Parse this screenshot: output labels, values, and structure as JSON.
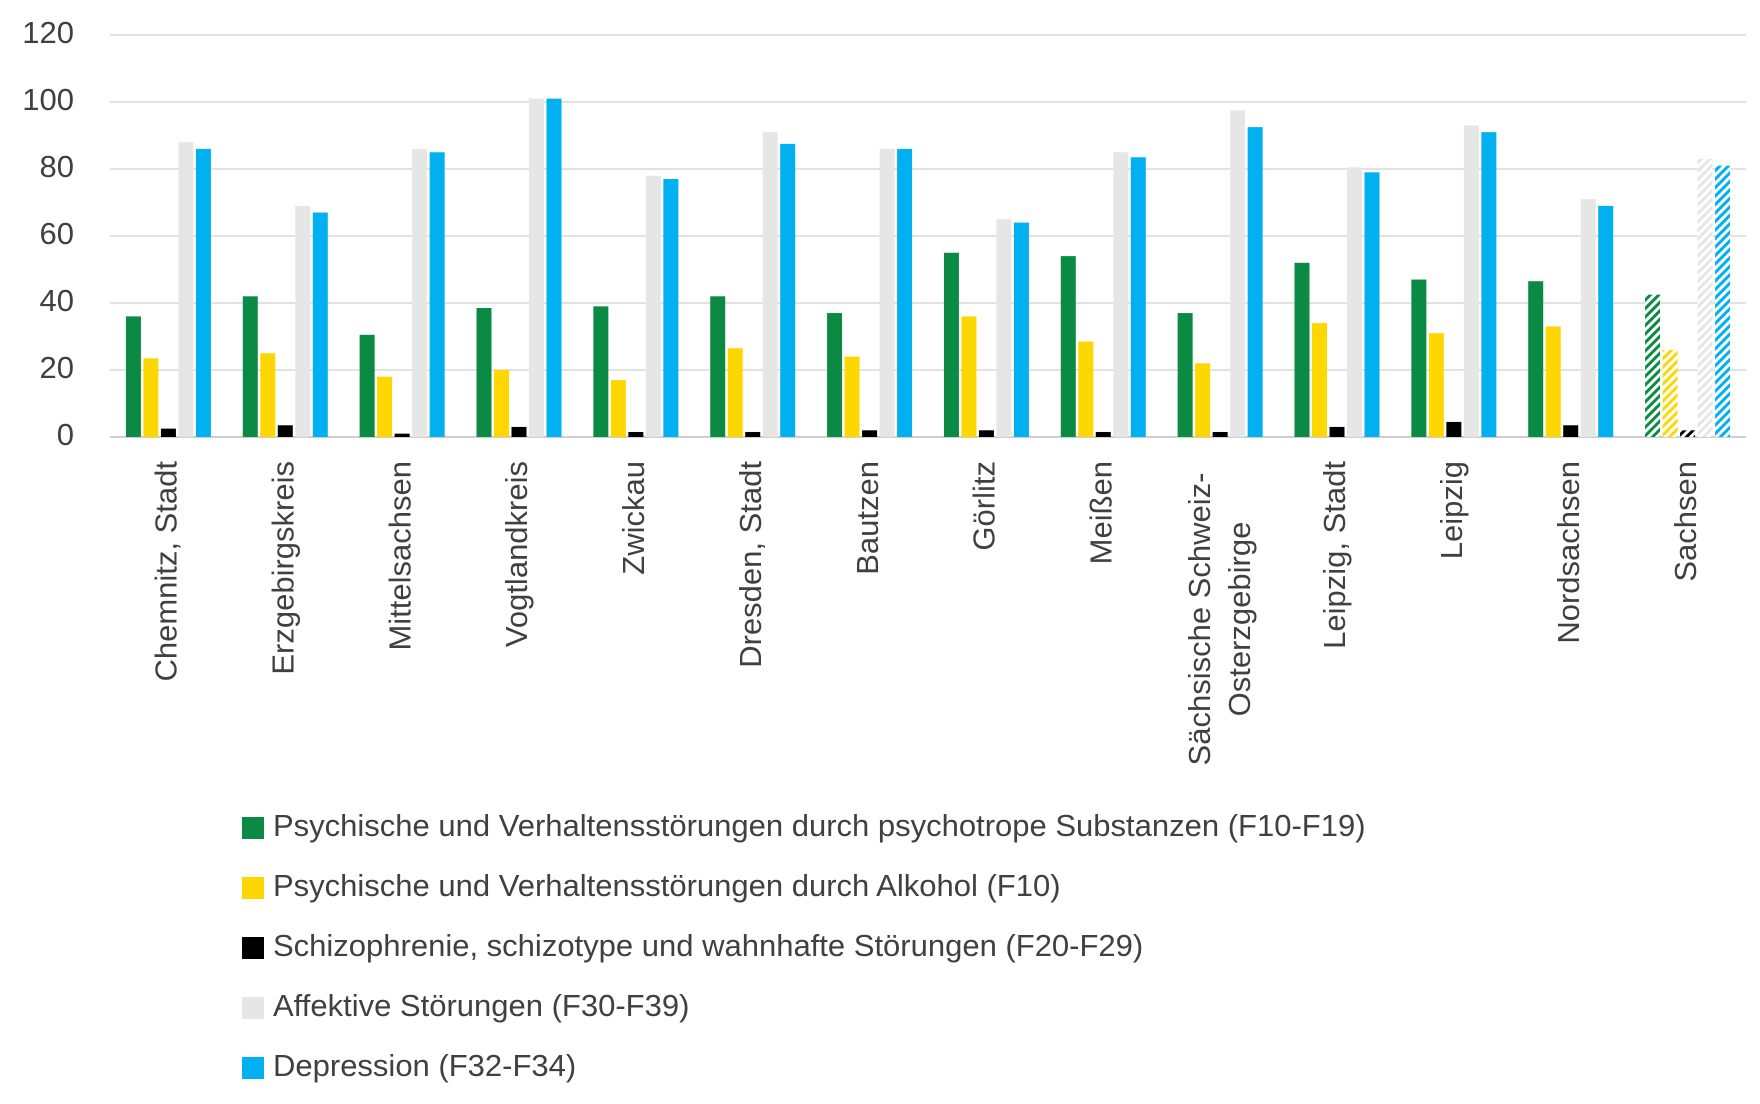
{
  "chart_data": {
    "type": "bar",
    "categories": [
      "Chemnitz, Stadt",
      "Erzgebirgskreis",
      "Mittelsachsen",
      "Vogtlandkreis",
      "Zwickau",
      "Dresden, Stadt",
      "Bautzen",
      "Görlitz",
      "Meißen",
      "Sächsische Schweiz-Osterzgebirge",
      "Leipzig, Stadt",
      "Leipzig",
      "Nordsachsen",
      "Sachsen"
    ],
    "series": [
      {
        "name": "Psychische und Verhaltensstörungen durch psychotrope Substanzen (F10-F19)",
        "color": "#0b8a44",
        "values": [
          36,
          42,
          30.5,
          38.5,
          39,
          42,
          37,
          55,
          54,
          37,
          52,
          47,
          46.5,
          42.5
        ]
      },
      {
        "name": "Psychische und Verhaltensstörungen durch Alkohol (F10)",
        "color": "#ffd700",
        "values": [
          23.5,
          25,
          18,
          20,
          17,
          26.5,
          24,
          36,
          28.5,
          22,
          34,
          31,
          33,
          26
        ]
      },
      {
        "name": "Schizophrenie, schizotype und wahnhafte Störungen (F20-F29)",
        "color": "#000000",
        "values": [
          2.5,
          3.5,
          1,
          3,
          1.5,
          1.5,
          2,
          2,
          1.5,
          1.5,
          3,
          4.5,
          3.5,
          2
        ]
      },
      {
        "name": "Affektive Störungen (F30-F39)",
        "color": "#e6e6e6",
        "values": [
          88,
          69,
          86,
          101,
          78,
          91,
          86,
          65,
          85,
          97.5,
          80.5,
          93,
          71,
          83
        ]
      },
      {
        "name": "Depression (F32-F34)",
        "color": "#00b0f0",
        "values": [
          86,
          67,
          85,
          101,
          77,
          87.5,
          86,
          64,
          83.5,
          92.5,
          79,
          91,
          69,
          81
        ]
      }
    ],
    "hatched_categories": [
      "Sachsen"
    ],
    "ylim": [
      0,
      120
    ],
    "yticks": [
      0,
      20,
      40,
      60,
      80,
      100,
      120
    ],
    "grid": true,
    "legend": "bottom"
  }
}
